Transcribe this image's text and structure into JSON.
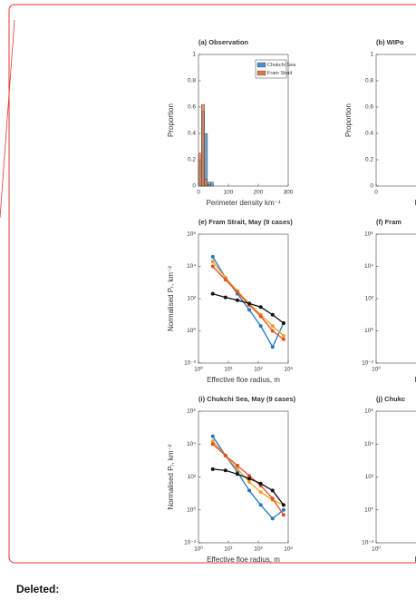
{
  "figure": {
    "panels": [
      {
        "type": "histogram",
        "title": "(a) Observation",
        "xlabel": "Perimeter density km⁻¹",
        "ylabel": "Proportion",
        "xlim": [
          0,
          300
        ],
        "ylim": [
          0,
          1
        ],
        "xticks": [
          0,
          100,
          200,
          300
        ],
        "yticks": [
          0,
          0.2,
          0.4,
          0.6,
          0.8,
          1
        ],
        "bins": [
          0,
          10,
          20,
          30,
          40,
          50
        ],
        "series": [
          {
            "name": "Chukchi Sea",
            "color": "#4a90c8",
            "values": [
              0.2,
              0.57,
              0.4,
              0.03,
              0.03
            ]
          },
          {
            "name": "Fram Strait",
            "color": "#d9784a",
            "values": [
              0.25,
              0.62,
              0.05,
              0.01,
              0
            ]
          }
        ]
      },
      {
        "type": "histogram",
        "title": "(b) WIPo",
        "xlabel": "Peri",
        "ylabel": "Proportion",
        "xlim": [
          0,
          300
        ],
        "ylim": [
          0,
          1
        ],
        "xticks": [
          0
        ],
        "yticks": [
          0,
          0.2,
          0.4,
          0.6,
          0.8,
          1
        ]
      },
      {
        "type": "line",
        "title": "(e) Fram Strait, May (9 cases)",
        "xlabel": "Effective floe radius, m",
        "ylabel": "Normalised Pᵣ, km⁻²",
        "log": true,
        "xlim": [
          1,
          1000
        ],
        "ylim": [
          0.01,
          1000000
        ],
        "xticks": [
          {
            "value": 1,
            "label": "10⁰"
          },
          {
            "value": 10,
            "label": "10¹"
          },
          {
            "value": 100,
            "label": "10²"
          },
          {
            "value": 1000,
            "label": "10³"
          }
        ],
        "yticks": [
          {
            "value": 0.01,
            "label": "10⁻²"
          },
          {
            "value": 1,
            "label": "10⁰"
          },
          {
            "value": 100,
            "label": "10²"
          },
          {
            "value": 10000,
            "label": "10⁴"
          },
          {
            "value": 1000000,
            "label": "10⁶"
          }
        ],
        "x": [
          3,
          8,
          20,
          50,
          120,
          300,
          700
        ],
        "series": [
          {
            "color": "#1f77c4",
            "values": [
              40000,
              2000,
              200,
              20,
              2,
              0.1,
              3
            ]
          },
          {
            "color": "#f0a020",
            "values": [
              20000,
              2000,
              300,
              50,
              10,
              2,
              0.5
            ]
          },
          {
            "color": "#e0502a",
            "values": [
              10000,
              1500,
              250,
              40,
              8,
              1,
              0.3
            ]
          },
          {
            "color": "#111111",
            "values": [
              200,
              120,
              80,
              50,
              30,
              10,
              3
            ]
          }
        ]
      },
      {
        "type": "line",
        "title": "(f) Fram",
        "xlabel": "Effe",
        "log": true,
        "xlim": [
          1,
          1000
        ],
        "ylim": [
          0.01,
          1000000
        ],
        "xticks": [
          {
            "value": 1,
            "label": "10⁰"
          }
        ],
        "yticks": [
          {
            "value": 0.01,
            "label": "10⁻²"
          },
          {
            "value": 1,
            "label": "10⁰"
          },
          {
            "value": 100,
            "label": "10²"
          },
          {
            "value": 10000,
            "label": "10⁴"
          },
          {
            "value": 1000000,
            "label": "10⁶"
          }
        ]
      },
      {
        "type": "line",
        "title": "(i) Chukchi Sea, May (9 cases)",
        "xlabel": "Effective floe radius, m",
        "ylabel": "Normalised Pᵣ, km⁻²",
        "log": true,
        "xlim": [
          1,
          1000
        ],
        "ylim": [
          0.01,
          1000000
        ],
        "xticks": [
          {
            "value": 1,
            "label": "10⁰"
          },
          {
            "value": 10,
            "label": "10¹"
          },
          {
            "value": 100,
            "label": "10²"
          },
          {
            "value": 1000,
            "label": "10³"
          }
        ],
        "yticks": [
          {
            "value": 0.01,
            "label": "10⁻²"
          },
          {
            "value": 1,
            "label": "10⁰"
          },
          {
            "value": 100,
            "label": "10²"
          },
          {
            "value": 10000,
            "label": "10⁴"
          },
          {
            "value": 1000000,
            "label": "10⁶"
          }
        ],
        "x": [
          3,
          8,
          20,
          50,
          120,
          300,
          700
        ],
        "series": [
          {
            "color": "#1f77c4",
            "values": [
              30000,
              2000,
              200,
              15,
              2,
              0.3,
              1
            ]
          },
          {
            "color": "#f0a020",
            "values": [
              15000,
              2000,
              300,
              50,
              12,
              4,
              2
            ]
          },
          {
            "color": "#e0502a",
            "values": [
              10000,
              2000,
              500,
              120,
              30,
              5,
              0.5
            ]
          },
          {
            "color": "#111111",
            "values": [
              300,
              250,
              150,
              80,
              40,
              15,
              2
            ]
          }
        ]
      },
      {
        "type": "line",
        "title": "(j) Chukc",
        "xlabel": "Effe",
        "log": true,
        "xlim": [
          1,
          1000
        ],
        "ylim": [
          0.01,
          1000000
        ],
        "xticks": [
          {
            "value": 1,
            "label": "10⁰"
          }
        ],
        "yticks": [
          {
            "value": 0.01,
            "label": "10⁻²"
          },
          {
            "value": 1,
            "label": "10⁰"
          },
          {
            "value": 100,
            "label": "10²"
          },
          {
            "value": 10000,
            "label": "10⁴"
          },
          {
            "value": 1000000,
            "label": "10⁶"
          }
        ]
      }
    ]
  },
  "footer": {
    "label": "Deleted:"
  }
}
